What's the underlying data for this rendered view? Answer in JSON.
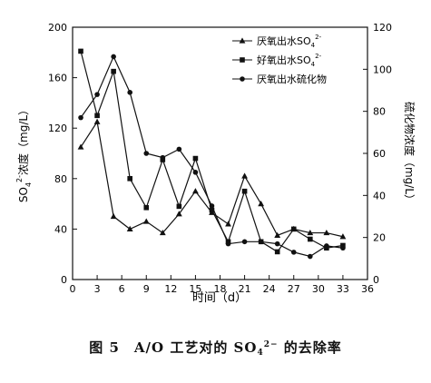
{
  "chart_data": {
    "type": "line",
    "xlabel": "时间（d）",
    "x_ticks": [
      0,
      3,
      6,
      9,
      12,
      15,
      18,
      21,
      24,
      27,
      30,
      33,
      36
    ],
    "xlim": [
      0,
      36
    ],
    "ylabel_left": {
      "main": "SO",
      "sub": "4",
      "sup": "2-",
      "tail": "浓度（mg/L）"
    },
    "ylim_left": [
      0,
      200
    ],
    "y_ticks_left": [
      0,
      40,
      80,
      120,
      160,
      200
    ],
    "ylabel_right": "硫化物浓度（mg/L）",
    "ylim_right": [
      0,
      120
    ],
    "y_ticks_right": [
      0,
      20,
      40,
      60,
      80,
      100,
      120
    ],
    "grid": false,
    "legend_position": "top-right",
    "series": [
      {
        "name": "厌氧出水SO₄²⁻",
        "legend": {
          "prefix": "厌氧出水SO",
          "sub": "4",
          "sup": "2-"
        },
        "marker": "triangle",
        "axis": "left",
        "x": [
          1,
          3,
          5,
          7,
          9,
          11,
          13,
          15,
          17,
          19,
          21,
          23,
          25,
          27,
          29,
          31,
          33
        ],
        "y": [
          105,
          125,
          50,
          40,
          46,
          37,
          52,
          70,
          53,
          44,
          82,
          60,
          35,
          40,
          37,
          37,
          34
        ]
      },
      {
        "name": "好氧出水SO₄²⁻",
        "legend": {
          "prefix": "好氧出水SO",
          "sub": "4",
          "sup": "2-"
        },
        "marker": "square",
        "axis": "left",
        "x": [
          1,
          3,
          5,
          7,
          9,
          11,
          13,
          15,
          17,
          19,
          21,
          23,
          25,
          27,
          29,
          31,
          33
        ],
        "y": [
          181,
          130,
          165,
          80,
          57,
          95,
          58,
          96,
          55,
          30,
          70,
          30,
          22,
          40,
          32,
          25,
          27
        ]
      },
      {
        "name": "厌氧出水硫化物",
        "legend": {
          "prefix": "厌氧出水硫化物",
          "sub": "",
          "sup": ""
        },
        "marker": "circle",
        "axis": "right",
        "x": [
          1,
          3,
          5,
          7,
          9,
          11,
          13,
          15,
          17,
          19,
          21,
          23,
          25,
          27,
          29,
          31,
          33
        ],
        "y": [
          77,
          88,
          106,
          89,
          60,
          58,
          62,
          51,
          35,
          17,
          18,
          18,
          17,
          13,
          11,
          16,
          15
        ]
      }
    ]
  },
  "caption": {
    "prefix": "图 5　A/O 工艺对的 SO",
    "sub": "4",
    "sup": "2−",
    "suffix": " 的去除率"
  }
}
